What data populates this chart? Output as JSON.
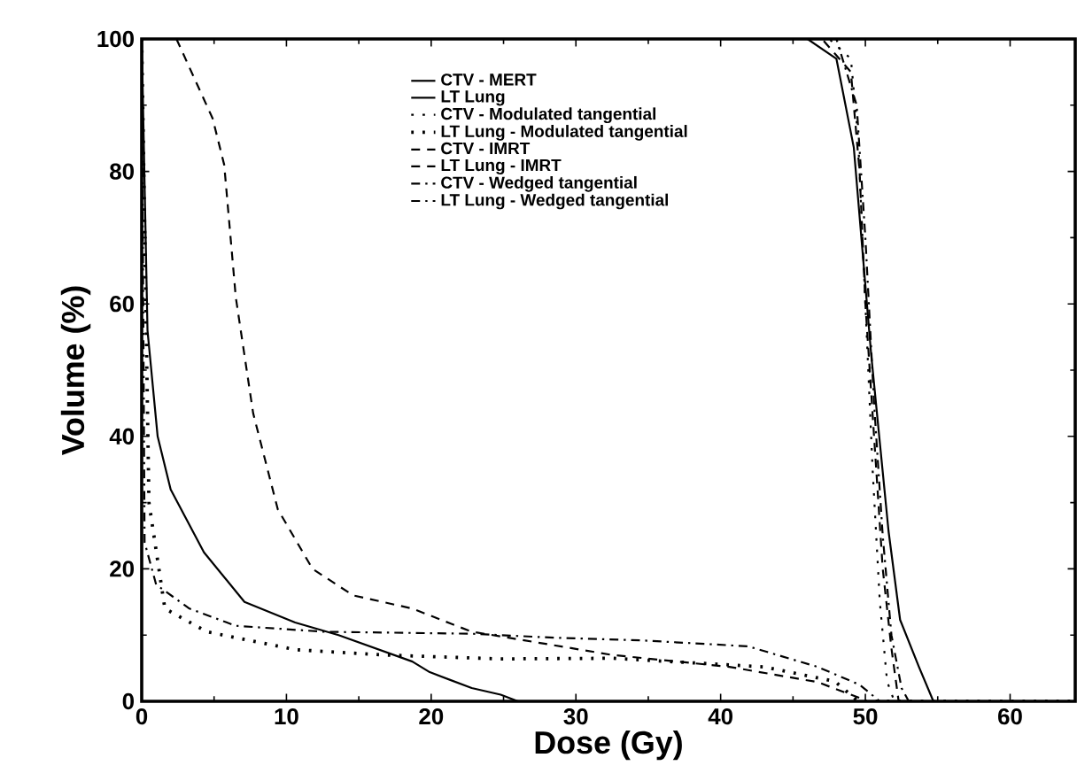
{
  "chart_data": {
    "type": "line",
    "xlabel": "Dose (Gy)",
    "ylabel": "Volume (%)",
    "xlim": [
      0,
      64.5
    ],
    "ylim": [
      0,
      100
    ],
    "xticks": [
      0,
      10,
      20,
      30,
      40,
      50,
      60
    ],
    "yticks": [
      0,
      20,
      40,
      60,
      80,
      100
    ],
    "legend": "top",
    "grid": false,
    "marker": "none",
    "series": [
      {
        "name": "CTV - MERT",
        "color": "#000000",
        "line_style": "solid",
        "x": [
          0,
          46,
          48,
          49.2,
          50.4,
          51.6,
          52.4,
          53.7,
          54.7,
          64.5
        ],
        "values": [
          100,
          100,
          97,
          83.6,
          52.4,
          25.7,
          12.3,
          5.2,
          0,
          0
        ]
      },
      {
        "name": "LT Lung",
        "color": "#000000",
        "line_style": "solid",
        "x": [
          0,
          0.4,
          1.1,
          2.0,
          4.3,
          7.1,
          10.6,
          13.6,
          18.7,
          19.9,
          22.8,
          24.8,
          26,
          64.5
        ],
        "values": [
          100,
          56,
          40,
          32,
          22.5,
          15,
          11.9,
          10,
          6,
          4.4,
          2,
          1,
          0,
          0
        ]
      },
      {
        "name": "CTV - Modulated tangential",
        "color": "#000000",
        "line_style": "dotted",
        "x": [
          0,
          47.5,
          49,
          49.5,
          50,
          50.5,
          51,
          51.5,
          52,
          64.5
        ],
        "values": [
          100,
          100,
          97,
          85,
          60,
          35,
          15,
          3,
          0,
          0
        ]
      },
      {
        "name": "LT Lung - Modulated tangential",
        "color": "#000000",
        "line_style": "dotted",
        "x": [
          0,
          0.5,
          1.6,
          4.5,
          10.6,
          16.7,
          24.8,
          32.5,
          43,
          47.9,
          49.5,
          64.5
        ],
        "values": [
          100,
          30,
          14,
          10.5,
          7.8,
          7,
          6.4,
          6.5,
          5.2,
          3,
          0,
          0
        ]
      },
      {
        "name": "CTV - IMRT",
        "color": "#000000",
        "line_style": "dashed",
        "x": [
          0,
          47,
          49,
          49.6,
          50,
          50.6,
          51.2,
          51.8,
          52.3,
          64.5
        ],
        "values": [
          100,
          100,
          95,
          80,
          60,
          40,
          20,
          8,
          0,
          0
        ]
      },
      {
        "name": "LT Lung - IMRT",
        "color": "#000000",
        "line_style": "dashed",
        "x": [
          2.4,
          4.9,
          5.7,
          6.5,
          7.7,
          9.4,
          11.8,
          14.6,
          18.7,
          22.8,
          24.8,
          32.5,
          40.6,
          46.7,
          49.6,
          50,
          64.5
        ],
        "values": [
          100,
          88,
          81,
          61,
          43.5,
          29,
          20,
          16,
          14,
          10.5,
          9.8,
          7,
          5.2,
          2.9,
          0.5,
          0,
          0
        ]
      },
      {
        "name": "CTV - Wedged tangential",
        "color": "#000000",
        "line_style": "dashdot",
        "x": [
          0,
          48,
          49.4,
          50,
          50.6,
          51.2,
          51.8,
          52.5,
          53,
          64.5
        ],
        "values": [
          100,
          100,
          90,
          70,
          45,
          25,
          10,
          2,
          0,
          0
        ]
      },
      {
        "name": "LT Lung - Wedged tangential",
        "color": "#000000",
        "line_style": "dashdot",
        "x": [
          0,
          0.2,
          1,
          3.3,
          6.5,
          12.6,
          22.8,
          28.5,
          34.5,
          41.9,
          46.7,
          49.6,
          51,
          64.5
        ],
        "values": [
          100,
          24,
          17.6,
          14,
          11.4,
          10.5,
          10.2,
          9.6,
          9.2,
          8.3,
          5.2,
          2.5,
          0,
          0
        ]
      }
    ]
  }
}
